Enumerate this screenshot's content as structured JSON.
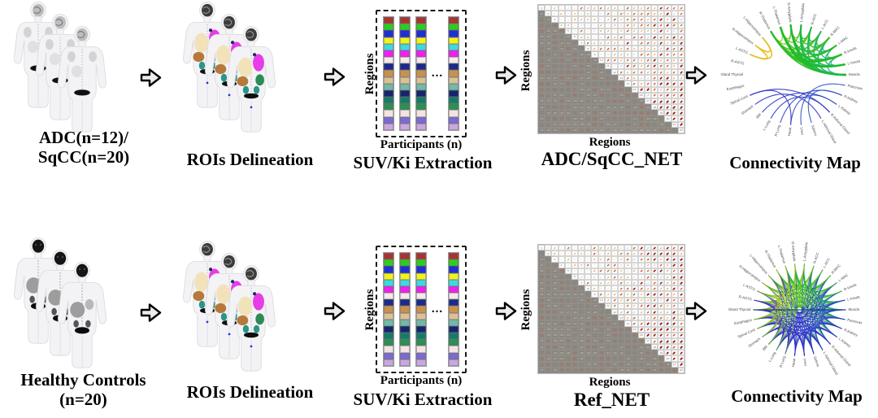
{
  "rows": [
    {
      "cohort": [
        "ADC(n=12)/",
        "SqCC(n=20)"
      ],
      "roi_title": "ROIs Delineation",
      "extraction": {
        "y_label": "Regions",
        "x_label": "Participants (n)",
        "title": "SUV/Ki Extraction",
        "ellipsis": "..."
      },
      "network": {
        "y_label": "Regions",
        "x_label": "Regions",
        "title": "ADC/SqCC_NET"
      },
      "map_title": "Connectivity Map"
    },
    {
      "cohort": [
        "Healthy Controls",
        "(n=20)"
      ],
      "roi_title": "ROIs Delineation",
      "extraction": {
        "y_label": "Regions",
        "x_label": "Participants (n)",
        "title": "SUV/Ki Extraction",
        "ellipsis": "..."
      },
      "network": {
        "y_label": "Regions",
        "x_label": "Regions",
        "title": "Ref_NET"
      },
      "map_title": "Connectivity Map"
    }
  ],
  "region_colors": [
    "#a93333",
    "#2ecc1e",
    "#1f2fd4",
    "#f2f21c",
    "#3fd8e0",
    "#f01ff0",
    "#f6e9e9",
    "#1b2a8c",
    "#c89150",
    "#d9c29a",
    "#74b8a6",
    "#16246e",
    "#167a6a",
    "#2d8f52",
    "#f3e3e3",
    "#7b6bd0",
    "#c9a8dd"
  ],
  "matrix_size": 22,
  "connectivity_nodes": [
    "Gland Thyroid",
    "R-ASTG",
    "L-ASTG",
    "R-Hippocampus",
    "L-Hippocampus",
    "R-Thalamus",
    "L-Thalamus",
    "R-Amygdala",
    "L-Amygdala",
    "R-ACC",
    "L-ACC",
    "R-MAC",
    "L-MAC",
    "R-Insula",
    "L-Insula",
    "Muscle",
    "Pancreas",
    "R-Kidney",
    "L-Kidney",
    "R-Adrenal Gland",
    "L-Adrenal Gland",
    "Spleen",
    "Liver",
    "Heart",
    "R-Lung",
    "L-Lung",
    "BM",
    "Stomach",
    "Spinal Cord",
    "Esophagus"
  ],
  "map_colors": {
    "upper_left": "#e3c418",
    "upper_right": "#1fae6e",
    "lower": "#3b35c0",
    "divider": "#233a8f"
  }
}
